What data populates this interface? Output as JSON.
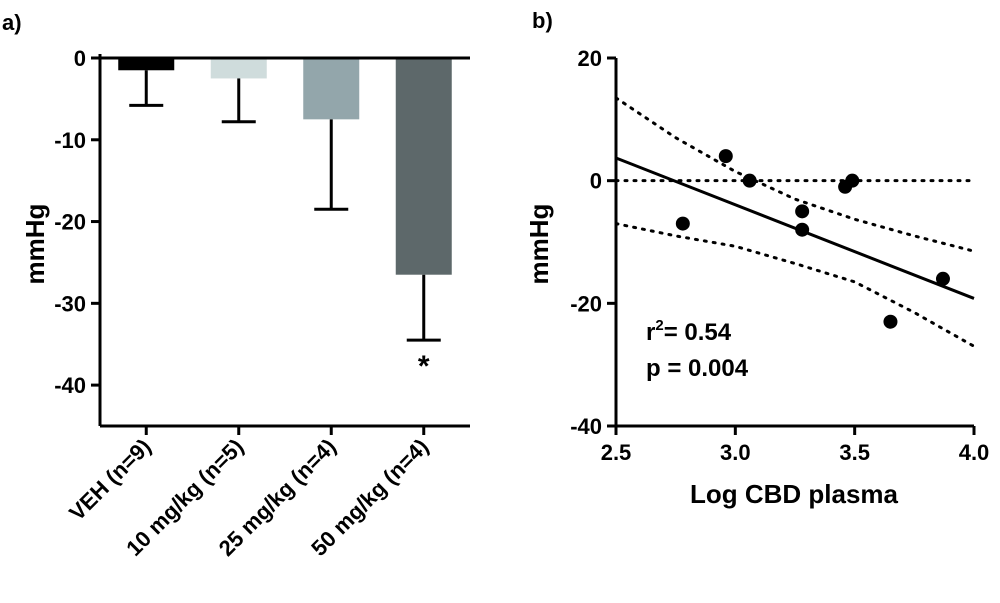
{
  "chart_data": [
    {
      "panel_label": "a)",
      "type": "bar",
      "categories": [
        "VEH (n=9)",
        "10 mg/kg (n=5)",
        "25 mg/kg (n=4)",
        "50 mg/kg (n=4)"
      ],
      "values": [
        -1.5,
        -2.5,
        -7.5,
        -26.5
      ],
      "error": [
        4.3,
        5.3,
        11.0,
        8.0
      ],
      "colors": [
        "#000000",
        "#cfdcdc",
        "#93a6ab",
        "#5d686a"
      ],
      "annotations": [
        "",
        "",
        "",
        "*"
      ],
      "xlabel": "",
      "ylabel": "mmHg",
      "ylim": [
        -45,
        0
      ],
      "yticks": [
        0,
        -10,
        -20,
        -30,
        -40
      ],
      "ytick_labels": [
        "0",
        "-10",
        "-20",
        "-30",
        "-40"
      ],
      "grid": false
    },
    {
      "panel_label": "b)",
      "type": "scatter",
      "x": [
        2.78,
        2.96,
        3.06,
        3.28,
        3.28,
        3.46,
        3.49,
        3.65,
        3.87
      ],
      "y": [
        -7,
        4,
        0,
        -5,
        -8,
        -1,
        0,
        -23,
        -16
      ],
      "fit_line": {
        "x": [
          2.5,
          4.0
        ],
        "y": [
          3.7,
          -19.2
        ]
      },
      "confidence_upper": {
        "x": [
          2.5,
          2.75,
          3.0,
          3.25,
          3.5,
          3.75,
          4.0
        ],
        "y": [
          13.5,
          7.0,
          1.5,
          -3.0,
          -6.3,
          -9.0,
          -11.5
        ]
      },
      "confidence_lower": {
        "x": [
          2.5,
          2.75,
          3.0,
          3.25,
          3.5,
          3.75,
          4.0
        ],
        "y": [
          -7.0,
          -9.0,
          -10.7,
          -13.5,
          -16.5,
          -21.5,
          -27.0
        ]
      },
      "reference_line_y": 0,
      "xlabel": "Log CBD plasma",
      "ylabel": "mmHg",
      "xlim": [
        2.5,
        4.0
      ],
      "ylim": [
        -40,
        20
      ],
      "xticks": [
        2.5,
        3.0,
        3.5,
        4.0
      ],
      "xtick_labels": [
        "2.5",
        "3.0",
        "3.5",
        "4.0"
      ],
      "yticks": [
        20,
        0,
        -20,
        -40
      ],
      "ytick_labels": [
        "20",
        "0",
        "-20",
        "-40"
      ],
      "annotations": [
        "0.54",
        "p = 0.004"
      ],
      "r2_prefix": "r",
      "r2_sup": "2",
      "r2_suffix": "= 0.54",
      "grid": false
    }
  ]
}
